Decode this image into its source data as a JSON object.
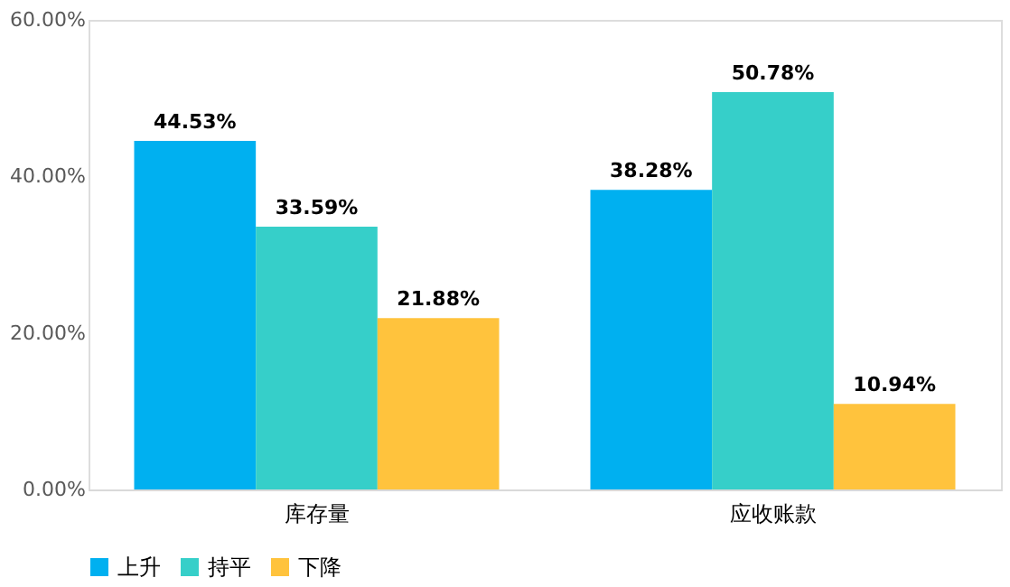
{
  "chart_data": {
    "type": "bar",
    "categories": [
      "库存量",
      "应收账款"
    ],
    "series": [
      {
        "name": "上升",
        "color": "#00b0f0",
        "values": [
          44.53,
          38.28
        ],
        "value_labels": [
          "44.53%",
          "38.28%"
        ]
      },
      {
        "name": "持平",
        "color": "#36cfc9",
        "values": [
          33.59,
          50.78
        ],
        "value_labels": [
          "33.59%",
          "50.78%"
        ]
      },
      {
        "name": "下降",
        "color": "#ffc33d",
        "values": [
          21.88,
          10.94
        ],
        "value_labels": [
          "21.88%",
          "10.94%"
        ]
      }
    ],
    "ylim": [
      0,
      60
    ],
    "yticks": [
      {
        "value": 0,
        "label": "0.00%"
      },
      {
        "value": 20,
        "label": "20.00%"
      },
      {
        "value": 40,
        "label": "40.00%"
      },
      {
        "value": 60,
        "label": "60.00%"
      }
    ],
    "grid": false,
    "legend": "bottom"
  }
}
